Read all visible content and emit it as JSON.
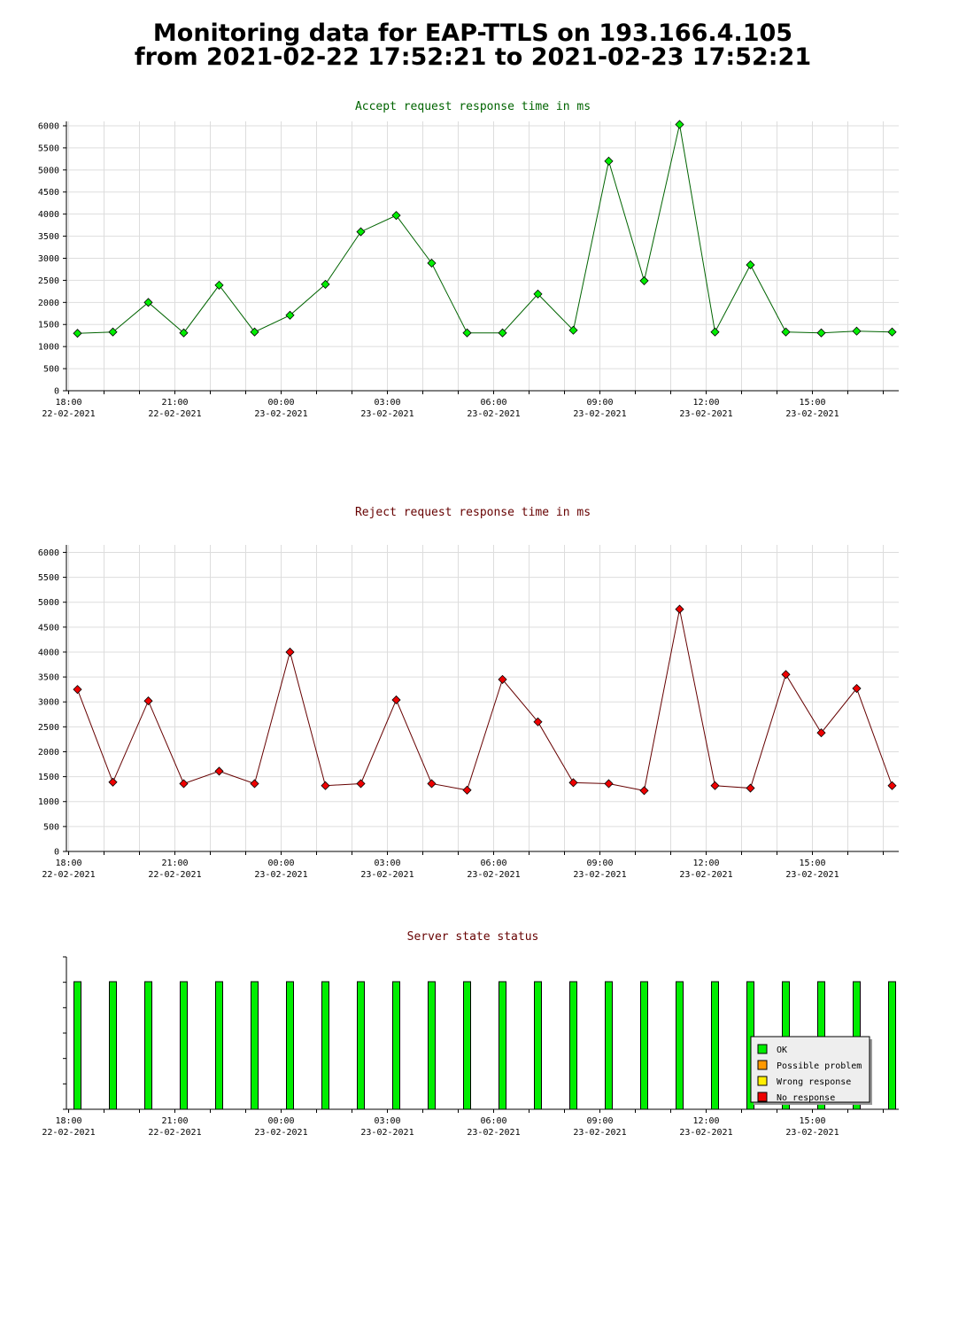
{
  "page": {
    "title_line1": "Monitoring data for EAP-TTLS on 193.166.4.105",
    "title_line2": "from 2021-02-22 17:52:21 to 2021-02-23 17:52:21"
  },
  "colors": {
    "accept_title": "#006400",
    "reject_title": "#660000",
    "status_title": "#660000",
    "accept_line": "#006400",
    "reject_line": "#660000",
    "ok": "#00ee00",
    "possible_problem": "#ff9900",
    "wrong_response": "#ffee00",
    "no_response": "#ee0000",
    "grid": "#dddddd"
  },
  "x_ticks": [
    {
      "time": "18:00",
      "date": "22-02-2021"
    },
    {
      "time": "21:00",
      "date": "22-02-2021"
    },
    {
      "time": "00:00",
      "date": "23-02-2021"
    },
    {
      "time": "03:00",
      "date": "23-02-2021"
    },
    {
      "time": "06:00",
      "date": "23-02-2021"
    },
    {
      "time": "09:00",
      "date": "23-02-2021"
    },
    {
      "time": "12:00",
      "date": "23-02-2021"
    },
    {
      "time": "15:00",
      "date": "23-02-2021"
    }
  ],
  "chart_data": [
    {
      "type": "line",
      "title": "Accept request response time in ms",
      "x_unit": "hours after 2021-02-22 18:00",
      "x": [
        0.25,
        1.25,
        2.25,
        3.25,
        4.25,
        5.25,
        6.25,
        7.25,
        8.25,
        9.25,
        10.25,
        11.25,
        12.25,
        13.25,
        14.25,
        15.25,
        16.25,
        17.25,
        18.25,
        19.25,
        20.25,
        21.25,
        22.25,
        23.25
      ],
      "values": [
        1300,
        1330,
        2000,
        1310,
        2390,
        1330,
        1710,
        2410,
        3600,
        3970,
        2890,
        1310,
        1310,
        2190,
        1370,
        5200,
        2490,
        6030,
        1330,
        2850,
        1330,
        1310,
        1350,
        1330
      ],
      "ylim": [
        0,
        6100
      ],
      "yticks": [
        0,
        500,
        1000,
        1500,
        2000,
        2500,
        3000,
        3500,
        4000,
        4500,
        5000,
        5500,
        6000
      ],
      "grid": true
    },
    {
      "type": "line",
      "title": "Reject request response time in ms",
      "x_unit": "hours after 2021-02-22 18:00",
      "x": [
        0.25,
        1.25,
        2.25,
        3.25,
        4.25,
        5.25,
        6.25,
        7.25,
        8.25,
        9.25,
        10.25,
        11.25,
        12.25,
        13.25,
        14.25,
        15.25,
        16.25,
        17.25,
        18.25,
        19.25,
        20.25,
        21.25,
        22.25,
        23.25
      ],
      "values": [
        3250,
        1390,
        3020,
        1360,
        1610,
        1360,
        4000,
        1320,
        1360,
        3040,
        1360,
        1230,
        3450,
        2600,
        1380,
        1360,
        1220,
        4860,
        1320,
        1270,
        3550,
        2380,
        3270,
        1320
      ],
      "ylim": [
        0,
        6150
      ],
      "yticks": [
        0,
        500,
        1000,
        1500,
        2000,
        2500,
        3000,
        3500,
        4000,
        4500,
        5000,
        5500,
        6000
      ],
      "grid": true
    },
    {
      "type": "bar",
      "title": "Server state status",
      "x_unit": "hours after 2021-02-22 18:00",
      "x": [
        0.25,
        1.25,
        2.25,
        3.25,
        4.25,
        5.25,
        6.25,
        7.25,
        8.25,
        9.25,
        10.25,
        11.25,
        12.25,
        13.25,
        14.25,
        15.25,
        16.25,
        17.25,
        18.25,
        19.25,
        20.25,
        21.25,
        22.25,
        23.25
      ],
      "states": [
        "OK",
        "OK",
        "OK",
        "OK",
        "OK",
        "OK",
        "OK",
        "OK",
        "OK",
        "OK",
        "OK",
        "OK",
        "OK",
        "OK",
        "OK",
        "OK",
        "OK",
        "OK",
        "OK",
        "OK",
        "OK",
        "OK",
        "OK",
        "OK"
      ],
      "legend": [
        {
          "label": "OK",
          "color": "#00ee00"
        },
        {
          "label": "Possible problem",
          "color": "#ff9900"
        },
        {
          "label": "Wrong response",
          "color": "#ffee00"
        },
        {
          "label": "No response",
          "color": "#ee0000"
        }
      ],
      "legend_position": "bottom-right"
    }
  ]
}
